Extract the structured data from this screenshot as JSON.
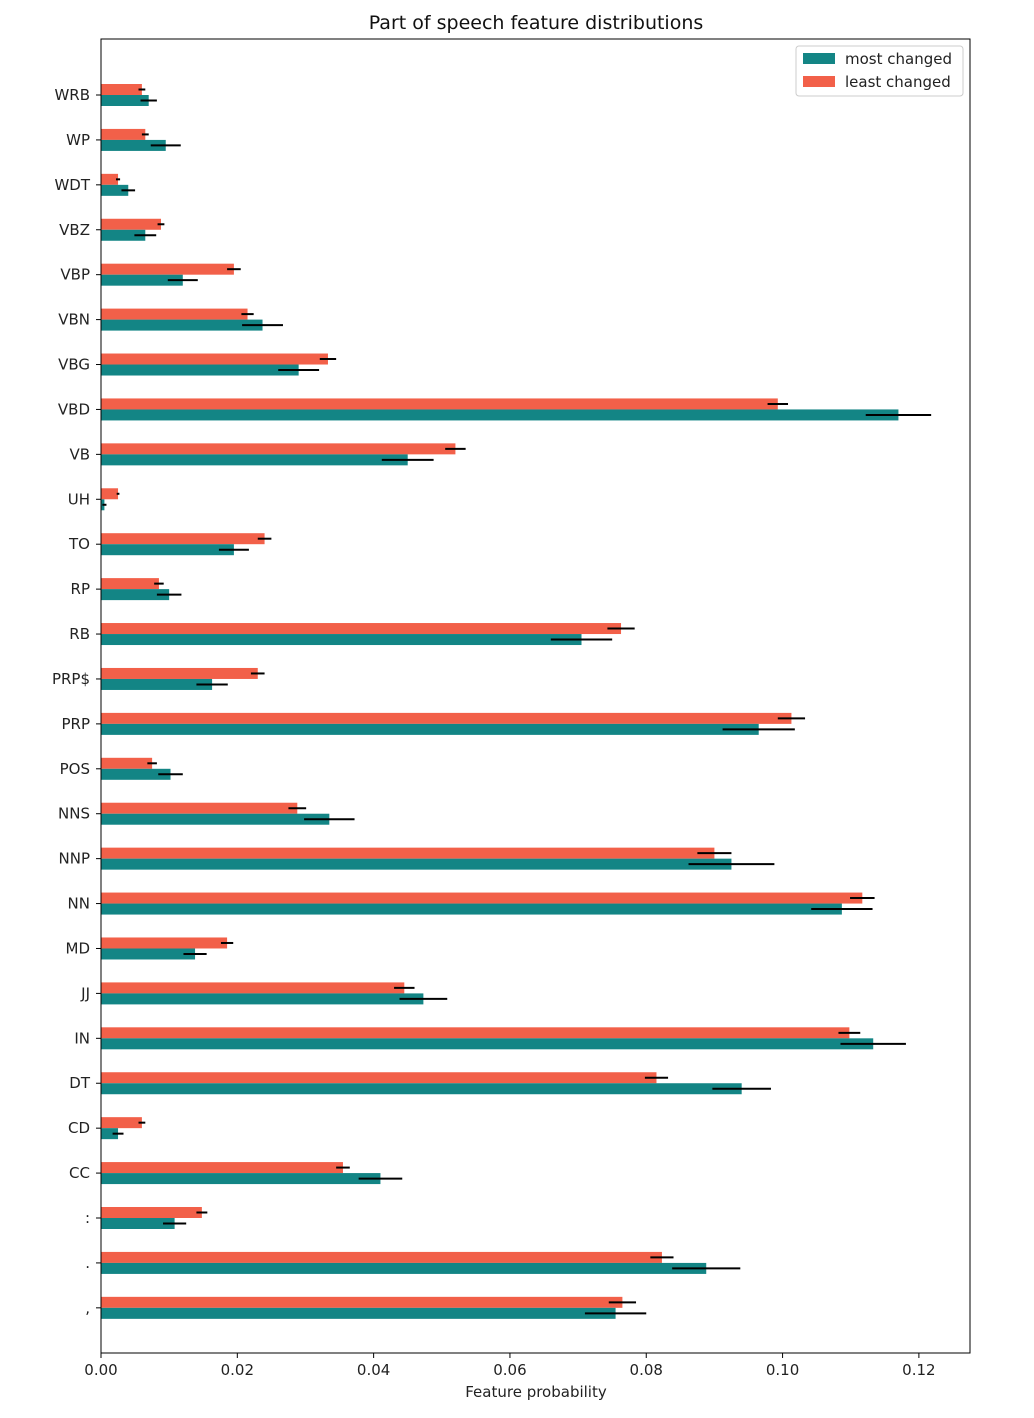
{
  "chart_data": {
    "type": "bar",
    "orientation": "horizontal",
    "title": "Part of speech feature distributions",
    "xlabel": "Feature probability",
    "ylabel": "",
    "xlim": [
      0,
      0.1275
    ],
    "x_ticks": [
      "0.00",
      "0.02",
      "0.04",
      "0.06",
      "0.08",
      "0.10",
      "0.12"
    ],
    "grid": false,
    "legend_position": "top-right",
    "categories": [
      "WRB",
      "WP",
      "WDT",
      "VBZ",
      "VBP",
      "VBN",
      "VBG",
      "VBD",
      "VB",
      "UH",
      "TO",
      "RP",
      "RB",
      "PRP$",
      "PRP",
      "POS",
      "NNS",
      "NNP",
      "NN",
      "MD",
      "JJ",
      "IN",
      "DT",
      "CD",
      "CC",
      ":",
      ".",
      ","
    ],
    "series": [
      {
        "name": "least changed",
        "color": "#f26049",
        "values": [
          0.006,
          0.0065,
          0.0025,
          0.0088,
          0.0195,
          0.0215,
          0.0333,
          0.0993,
          0.052,
          0.0025,
          0.024,
          0.0085,
          0.0763,
          0.023,
          0.1013,
          0.0075,
          0.0288,
          0.09,
          0.1117,
          0.0185,
          0.0445,
          0.1098,
          0.0815,
          0.006,
          0.0355,
          0.0148,
          0.0823,
          0.0765
        ],
        "errors": [
          0.0005,
          0.0005,
          0.0003,
          0.0005,
          0.001,
          0.0009,
          0.0012,
          0.0015,
          0.0015,
          0.0002,
          0.001,
          0.0007,
          0.002,
          0.001,
          0.002,
          0.0007,
          0.0013,
          0.0025,
          0.0018,
          0.0009,
          0.0015,
          0.0016,
          0.0017,
          0.0005,
          0.001,
          0.0008,
          0.0017,
          0.002
        ]
      },
      {
        "name": "most changed",
        "color": "#138585",
        "values": [
          0.007,
          0.0095,
          0.004,
          0.0065,
          0.012,
          0.0237,
          0.029,
          0.117,
          0.045,
          0.0005,
          0.0195,
          0.01,
          0.0705,
          0.0163,
          0.0965,
          0.0102,
          0.0335,
          0.0925,
          0.1087,
          0.0138,
          0.0473,
          0.1133,
          0.094,
          0.0025,
          0.041,
          0.0108,
          0.0888,
          0.0755
        ],
        "errors": [
          0.0012,
          0.0022,
          0.001,
          0.0016,
          0.0022,
          0.003,
          0.003,
          0.0048,
          0.0038,
          0.0003,
          0.0022,
          0.0018,
          0.0045,
          0.0023,
          0.0053,
          0.0018,
          0.0037,
          0.0063,
          0.0045,
          0.0017,
          0.0035,
          0.0048,
          0.0043,
          0.0008,
          0.0032,
          0.0017,
          0.005,
          0.0045
        ]
      }
    ],
    "legend": [
      "most changed",
      "least changed"
    ]
  }
}
